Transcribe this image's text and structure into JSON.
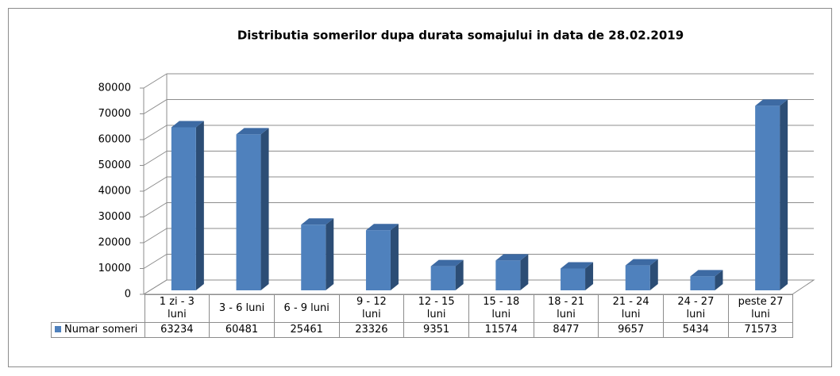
{
  "chart_data": {
    "type": "bar3d",
    "title": "Distributia somerilor dupa durata somajului in data de 28.02.2019",
    "categories": [
      "1 zi - 3 luni",
      "3 - 6 luni",
      "6 - 9 luni",
      "9 - 12 luni",
      "12 - 15 luni",
      "15 - 18 luni",
      "18 - 21 luni",
      "21 - 24 luni",
      "24 - 27 luni",
      "peste 27 luni"
    ],
    "series": [
      {
        "name": "Numar someri",
        "color": "#4f81bd",
        "values": [
          63234,
          60481,
          25461,
          23326,
          9351,
          11574,
          8477,
          9657,
          5434,
          71573
        ]
      }
    ],
    "ylim": [
      0,
      80000
    ],
    "yticks": [
      0,
      10000,
      20000,
      30000,
      40000,
      50000,
      60000,
      70000,
      80000
    ],
    "grid": true
  }
}
